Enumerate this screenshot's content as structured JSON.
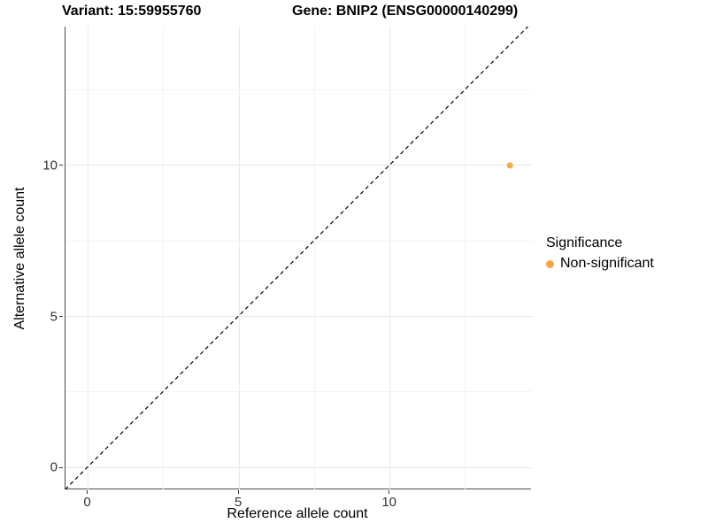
{
  "chart_data": {
    "type": "scatter",
    "titles": [
      "Variant: 15:59955760",
      "Gene: BNIP2 (ENSG00000140299)"
    ],
    "xlabel": "Reference allele count",
    "ylabel": "Alternative allele count",
    "x_domain": [
      -0.75,
      14.7
    ],
    "y_domain": [
      -0.73,
      14.6
    ],
    "x_ticks": [
      0,
      5,
      10
    ],
    "y_ticks": [
      0,
      5,
      10
    ],
    "x_minor_ticks": [
      2.5,
      7.5,
      12.5
    ],
    "y_minor_ticks": [
      2.5,
      7.5,
      12.5
    ],
    "grid": "major and minor gridlines on white background",
    "legend": {
      "title": "Significance",
      "position": "right-center",
      "entries": [
        {
          "label": "Non-significant",
          "color": "#F9A643",
          "marker": "circle"
        }
      ]
    },
    "series": [
      {
        "name": "Non-significant",
        "color": "#F9A643",
        "marker": "circle",
        "points": [
          {
            "x": 14,
            "y": 10
          }
        ]
      }
    ],
    "reference_line": {
      "kind": "identity",
      "slope": 1,
      "intercept": 0,
      "linetype": "dashed",
      "color": "#000000"
    }
  }
}
